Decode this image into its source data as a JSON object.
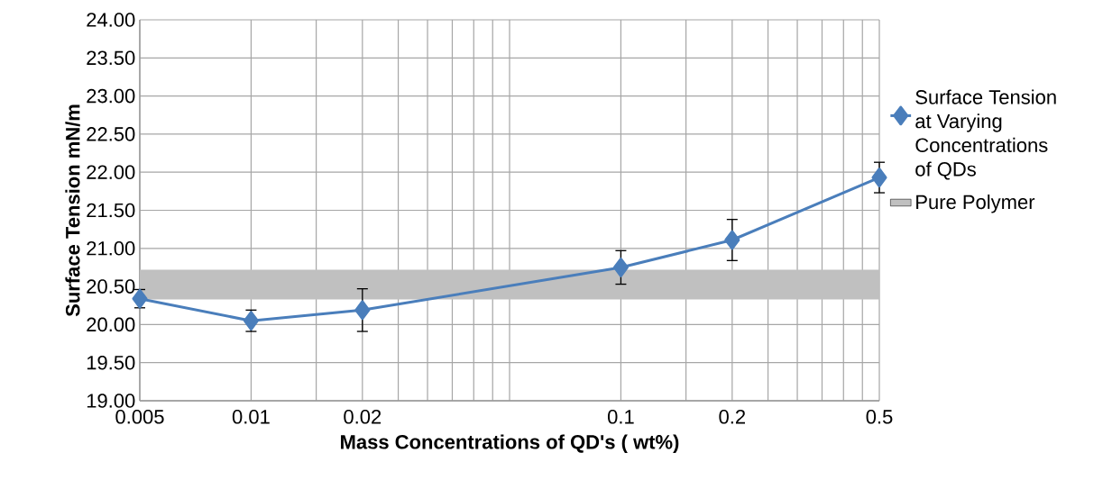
{
  "chart_data": {
    "type": "line",
    "xlabel": "Mass Concentrations of QD's  ( wt%)",
    "ylabel": "Surface Tension mN/m",
    "log": "x",
    "x": [
      0.005,
      0.01,
      0.02,
      0.1,
      0.2,
      0.5
    ],
    "series": [
      {
        "name": "Surface Tension at Varying Concentrations of QDs",
        "color": "#4a7ebb",
        "values": [
          20.34,
          20.05,
          20.19,
          20.75,
          21.11,
          21.93
        ],
        "errors": [
          0.12,
          0.14,
          0.28,
          0.22,
          0.27,
          0.2
        ]
      }
    ],
    "bands": [
      {
        "axis": "y",
        "from": 20.33,
        "to": 20.72,
        "label": "Pure Polymer",
        "color": "#c0c0c0"
      }
    ],
    "xlim": [
      0.005,
      0.5
    ],
    "ylim": [
      19,
      24
    ],
    "xticks": [
      {
        "value": 0.005,
        "label": "0.005"
      },
      {
        "value": 0.01,
        "label": "0.01"
      },
      {
        "value": 0.015,
        "label": null
      },
      {
        "value": 0.02,
        "label": "0.02"
      },
      {
        "value": 0.025,
        "label": null
      },
      {
        "value": 0.03,
        "label": null
      },
      {
        "value": 0.035,
        "label": null
      },
      {
        "value": 0.04,
        "label": null
      },
      {
        "value": 0.045,
        "label": null
      },
      {
        "value": 0.05,
        "label": null
      },
      {
        "value": 0.1,
        "label": "0.1"
      },
      {
        "value": 0.15,
        "label": null
      },
      {
        "value": 0.2,
        "label": "0.2"
      },
      {
        "value": 0.25,
        "label": null
      },
      {
        "value": 0.3,
        "label": null
      },
      {
        "value": 0.35,
        "label": null
      },
      {
        "value": 0.4,
        "label": null
      },
      {
        "value": 0.45,
        "label": null
      },
      {
        "value": 0.5,
        "label": "0.5"
      }
    ],
    "yticks": [
      {
        "value": 19,
        "label": "19.00"
      },
      {
        "value": 19.5,
        "label": "19.50"
      },
      {
        "value": 20,
        "label": "20.00"
      },
      {
        "value": 20.5,
        "label": "20.50"
      },
      {
        "value": 21,
        "label": "21.00"
      },
      {
        "value": 21.5,
        "label": "21.50"
      },
      {
        "value": 22,
        "label": "22.00"
      },
      {
        "value": 22.5,
        "label": "22.50"
      },
      {
        "value": 23,
        "label": "23.00"
      },
      {
        "value": 23.5,
        "label": "23.50"
      },
      {
        "value": 24,
        "label": "24.00"
      }
    ],
    "grid": true,
    "legend": "right",
    "marker": "diamond",
    "line_style": "solid"
  }
}
